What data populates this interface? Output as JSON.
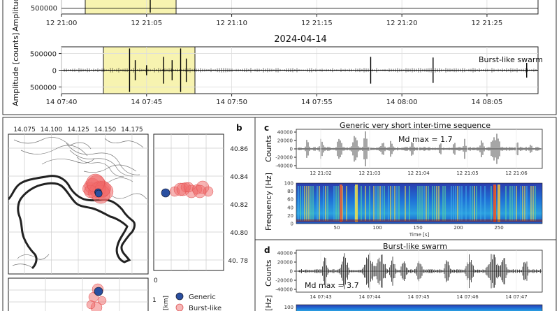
{
  "chart_data": [
    {
      "id": "waveform-top-cropped",
      "type": "line",
      "title": "",
      "xlabel": "",
      "ylabel": "Amplitude",
      "x_ticks": [
        "12 21:00",
        "12 21:05",
        "12 21:10",
        "12 21:15",
        "12 21:20",
        "12 21:25"
      ],
      "y_ticks": [
        "500000"
      ],
      "highlight": {
        "start": "12 21:01:30",
        "end": "12 21:07:00",
        "color": "#f7f3b0"
      },
      "series": [
        {
          "name": "",
          "color": "#000000",
          "x": [
            "12 21:06:00"
          ],
          "y": [
            600000
          ]
        }
      ]
    },
    {
      "id": "waveform-2024-04-14",
      "type": "line",
      "title": "2024-04-14",
      "xlabel": "",
      "ylabel": "Amplitude [counts]",
      "ylim": [
        -700000,
        700000
      ],
      "x_ticks": [
        "14 07:40",
        "14 07:45",
        "14 07:50",
        "14 07:55",
        "14 08:00",
        "14 08:05"
      ],
      "y_ticks": [
        "500000",
        "0",
        "500000"
      ],
      "annotation": "Burst-like swarm",
      "highlight": {
        "start": "14 07:42:30",
        "end": "14 07:48:00",
        "color": "#f7f3b0"
      },
      "series": [
        {
          "name": "",
          "color": "#000000",
          "x": [
            "14 07:44:00",
            "14 07:44:20",
            "14 07:45:00",
            "14 07:46:00",
            "14 07:46:30",
            "14 07:47:00",
            "14 07:47:20",
            "14 07:58:10",
            "14 08:01:50",
            "14 08:07:20"
          ],
          "y": [
            650000,
            300000,
            150000,
            400000,
            300000,
            650000,
            350000,
            400000,
            380000,
            220000
          ]
        }
      ]
    },
    {
      "id": "panel-b-map",
      "type": "scatter",
      "panel_letter": "b",
      "x_ticks": [
        "14.075",
        "14.100",
        "14.125",
        "14.150",
        "14.175"
      ],
      "y_ticks": [
        "40.86",
        "40.84",
        "40.82",
        "40.80",
        "40. 78"
      ],
      "side_ticks": [
        "0",
        "1"
      ],
      "side_unit": "[km]",
      "legend": {
        "position": "bottom-right",
        "entries": [
          "Generic",
          "Burst-like"
        ]
      },
      "series": [
        {
          "name": "Generic",
          "color": "#2a4fa0",
          "x": [
            14.1435,
            14.144
          ],
          "y": [
            40.8285,
            40.8275
          ]
        },
        {
          "name": "Burst-like",
          "color": "#f06a6a",
          "x": [
            14.135,
            14.138,
            14.142,
            14.145,
            14.147,
            14.149,
            14.14,
            14.143,
            14.146,
            14.1365,
            14.148,
            14.141
          ],
          "y": [
            40.831,
            40.833,
            40.834,
            40.832,
            40.83,
            40.829,
            40.828,
            40.83,
            40.827,
            40.829,
            40.831,
            40.835
          ]
        }
      ]
    },
    {
      "id": "panel-c",
      "type": "line",
      "panel_letter": "c",
      "title": "Generic very short inter-time sequence",
      "annotation": "Md max = 1.7",
      "ylabel": "Counts",
      "y_ticks": [
        "40000",
        "20000",
        "0",
        "-20000",
        "-40000"
      ],
      "x_ticks": [
        "12 21:02",
        "12 21:03",
        "12 21:04",
        "12 21:05",
        "12 21:06"
      ],
      "spectrogram": {
        "ylabel": "Frequency [Hz]",
        "y_ticks": [
          "100",
          "80",
          "60",
          "40",
          "20",
          "0"
        ],
        "xlabel": "Time [s]",
        "x_ticks": [
          "50",
          "100",
          "150",
          "200",
          "250"
        ]
      }
    },
    {
      "id": "panel-d",
      "type": "line",
      "panel_letter": "d",
      "title": "Burst-like swarm",
      "annotation": "Md max = 3.7",
      "ylabel": "Counts",
      "y_ticks": [
        "40000",
        "20000",
        "0",
        "-20000",
        "-40000"
      ],
      "x_ticks": [
        "14 07:43",
        "14 07:44",
        "14 07:45",
        "14 07:46",
        "14 07:47"
      ],
      "spectrogram": {
        "ylabel": "[Hz]",
        "y_ticks": [
          "100"
        ]
      }
    }
  ]
}
